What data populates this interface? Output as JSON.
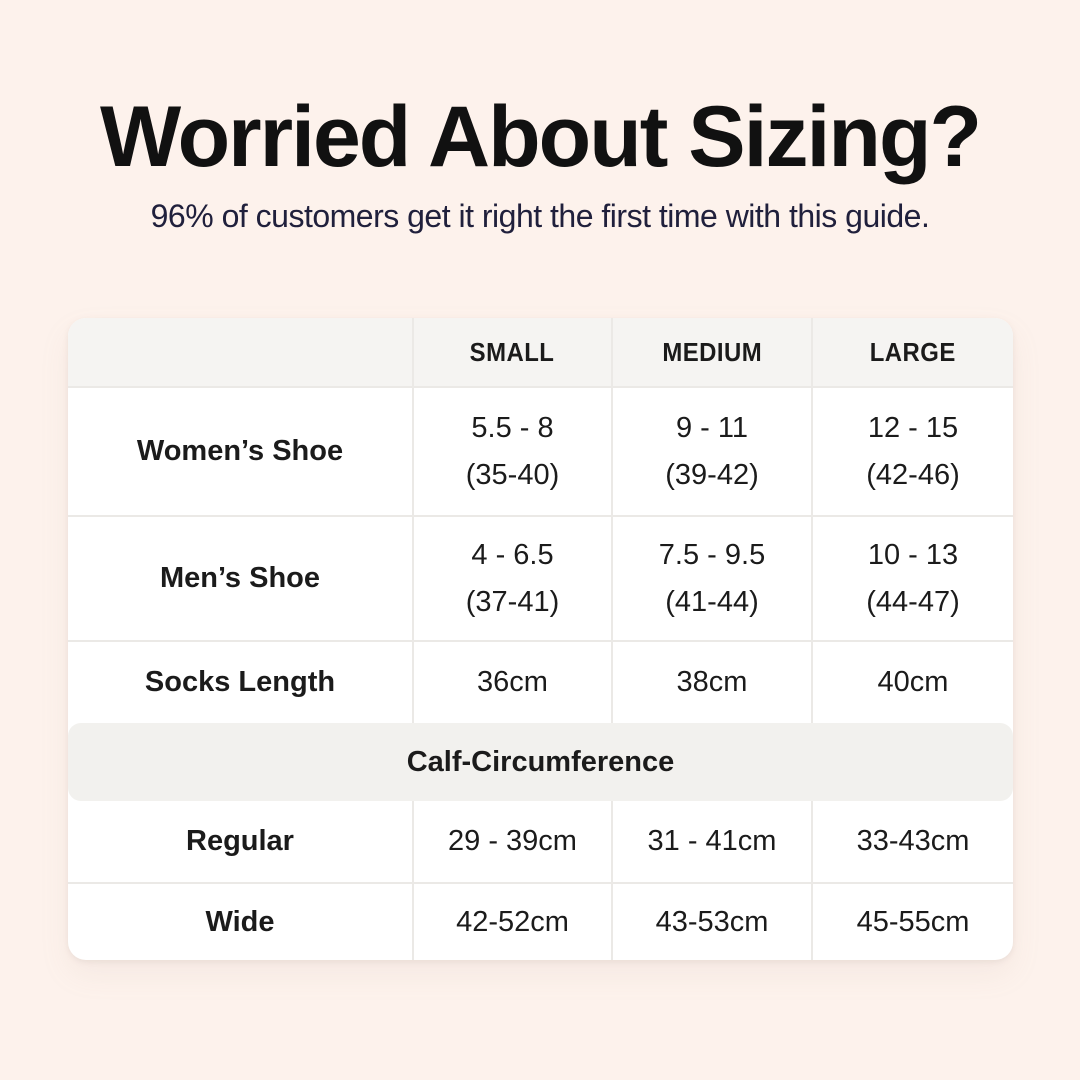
{
  "colors": {
    "background": "#fdf2ec",
    "card": "#ffffff",
    "panel": "#f5f4f2",
    "panel_deep": "#f2f1ee",
    "divider": "#ebe9e6",
    "title": "#111111",
    "subtitle": "#20203c",
    "text": "#1b1b1b"
  },
  "chart_data": {
    "type": "table",
    "title": "Worried About Sizing?",
    "subtitle": "96% of customers get it right the first time with this guide.",
    "columns": [
      "",
      "SMALL",
      "MEDIUM",
      "LARGE"
    ],
    "rows": [
      {
        "label": "Women’s Shoe",
        "cells": [
          [
            "5.5 - 8",
            "(35-40)"
          ],
          [
            "9 - 11",
            "(39-42)"
          ],
          [
            "12 - 15",
            "(42-46)"
          ]
        ]
      },
      {
        "label": "Men’s Shoe",
        "cells": [
          [
            "4 - 6.5",
            "(37-41)"
          ],
          [
            "7.5 - 9.5",
            "(41-44)"
          ],
          [
            "10 - 13",
            "(44-47)"
          ]
        ]
      },
      {
        "label": "Socks Length",
        "cells": [
          [
            "36cm"
          ],
          [
            "38cm"
          ],
          [
            "40cm"
          ]
        ]
      },
      {
        "label": "Calf-Circumference",
        "section": true,
        "cells": []
      },
      {
        "label": "Regular",
        "cells": [
          [
            "29 - 39cm"
          ],
          [
            "31 - 41cm"
          ],
          [
            "33-43cm"
          ]
        ]
      },
      {
        "label": "Wide",
        "cells": [
          [
            "42-52cm"
          ],
          [
            "43-53cm"
          ],
          [
            "45-55cm"
          ]
        ]
      }
    ]
  }
}
